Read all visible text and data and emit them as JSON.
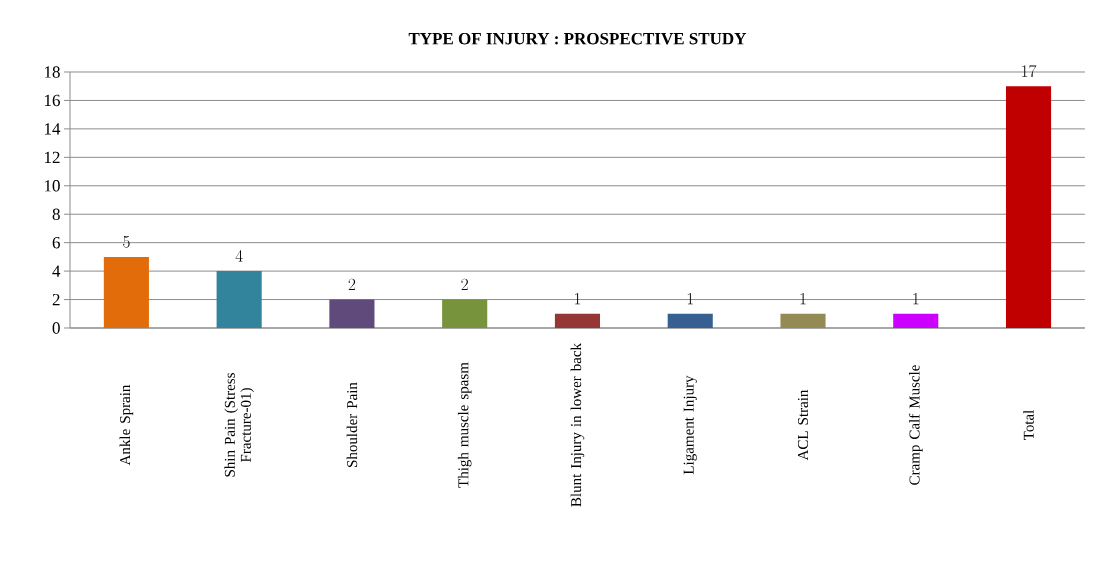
{
  "chart_data": {
    "type": "bar",
    "title": "TYPE OF INJURY : PROSPECTIVE STUDY",
    "categories": [
      "Ankle Sprain",
      "Shin Pain (Stress Fracture-01)",
      "Shoulder Pain",
      "Thigh muscle spasm",
      "Blunt Injury in lower back",
      "Ligament Injury",
      "ACL Strain",
      "Cramp Calf Muscle",
      "Total"
    ],
    "values": [
      5,
      4,
      2,
      2,
      1,
      1,
      1,
      1,
      17
    ],
    "colors": [
      "#e36c0a",
      "#31849b",
      "#604a7b",
      "#77933c",
      "#953735",
      "#376092",
      "#948a54",
      "#cc00ff",
      "#c00000"
    ],
    "ylim": [
      0,
      18
    ],
    "yticks": [
      0,
      2,
      4,
      6,
      8,
      10,
      12,
      14,
      16,
      18
    ],
    "grid": "y",
    "data_labels": true
  }
}
